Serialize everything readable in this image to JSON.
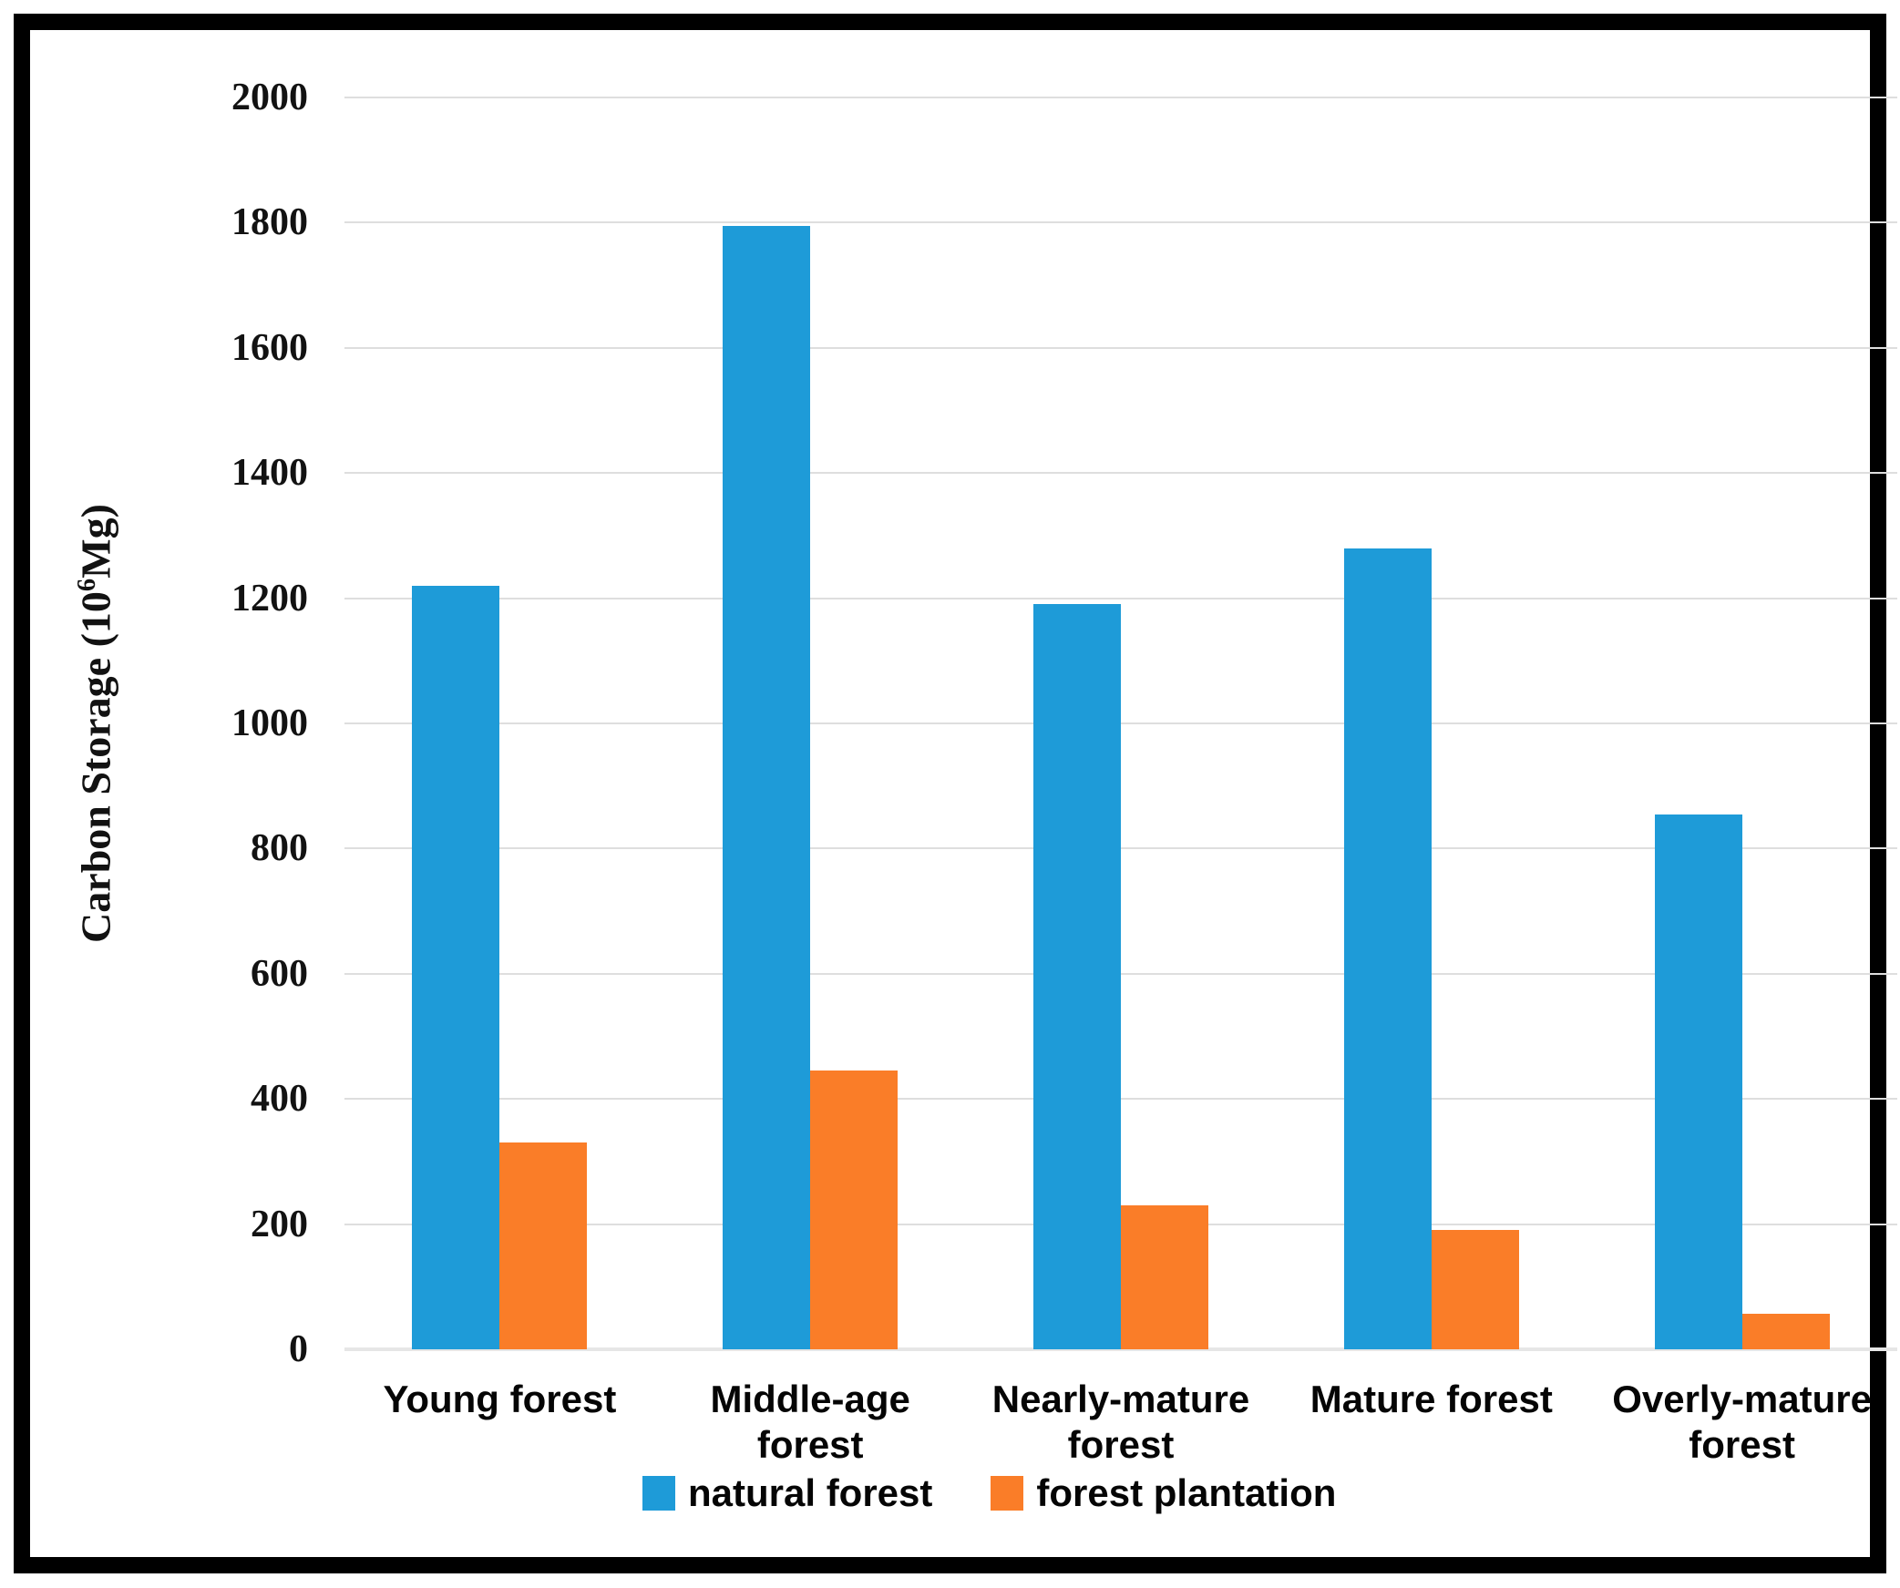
{
  "figure": {
    "background": "#ffffff",
    "border_color": "#000000"
  },
  "y_axis": {
    "title_prefix": "Carbon Storage (10",
    "title_sup": "6",
    "title_suffix": "Mg)"
  },
  "chart_data": {
    "type": "bar",
    "title": "",
    "xlabel": "",
    "ylabel": "Carbon Storage (10^6 Mg)",
    "ylim": [
      0,
      2000
    ],
    "yticks": [
      0,
      200,
      400,
      600,
      800,
      1000,
      1200,
      1400,
      1600,
      1800,
      2000
    ],
    "grid": true,
    "legend_position": "bottom",
    "gridline_color": "#DEDEDE",
    "baseline_color": "#E6E6E6",
    "categories": [
      "Young forest",
      "Middle-age forest",
      "Nearly-mature forest",
      "Mature forest",
      "Overly-mature forest"
    ],
    "series": [
      {
        "name": "natural forest",
        "color": "#1E9BD8",
        "values": [
          1220,
          1795,
          1190,
          1280,
          855
        ]
      },
      {
        "name": "forest plantation",
        "color": "#FA7D28",
        "values": [
          330,
          445,
          230,
          190,
          57
        ]
      }
    ]
  }
}
